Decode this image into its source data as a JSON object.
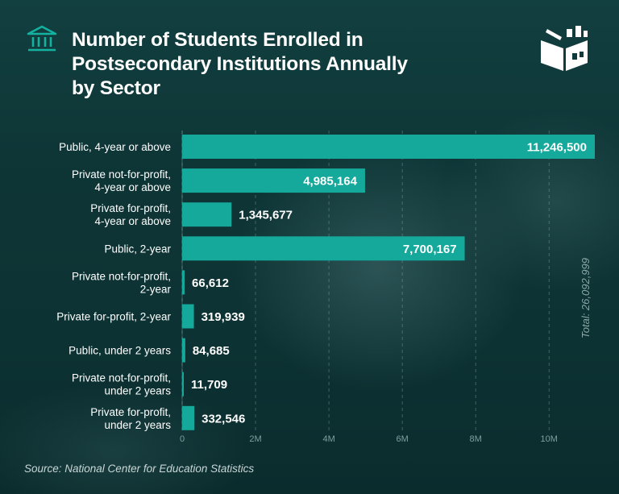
{
  "title_lines": [
    "Number of Students Enrolled in",
    "Postsecondary Institutions Annually",
    "by Sector"
  ],
  "source": "Source: National Center for Education Statistics",
  "colors": {
    "bar": "#14a99a",
    "accent": "#14b1a0",
    "axis_text": "#7f9f9f"
  },
  "icons": [
    "bank-icon",
    "brand-logo-icon"
  ],
  "chart_data": {
    "type": "bar",
    "orientation": "horizontal",
    "title": "Number of Students Enrolled in Postsecondary Institutions Annually by Sector",
    "categories": [
      [
        "Public, 4-year or above"
      ],
      [
        "Private not-for-profit,",
        "4-year or above"
      ],
      [
        "Private for-profit,",
        "4-year or above"
      ],
      [
        "Public, 2-year"
      ],
      [
        "Private not-for-profit,",
        "2-year"
      ],
      [
        "Private for-profit, 2-year"
      ],
      [
        "Public, under 2 years"
      ],
      [
        "Private not-for-profit,",
        "under 2 years"
      ],
      [
        "Private for-profit,",
        "under 2 years"
      ]
    ],
    "values": [
      11246500,
      4985164,
      1345677,
      7700167,
      66612,
      319939,
      84685,
      11709,
      332546
    ],
    "value_labels": [
      "11,246,500",
      "4,985,164",
      "1,345,677",
      "7,700,167",
      "66,612",
      "319,939",
      "84,685",
      "11,709",
      "332,546"
    ],
    "x_ticks": [
      {
        "value": 0,
        "label": "0"
      },
      {
        "value": 2000000,
        "label": "2M"
      },
      {
        "value": 4000000,
        "label": "4M"
      },
      {
        "value": 6000000,
        "label": "6M"
      },
      {
        "value": 8000000,
        "label": "8M"
      },
      {
        "value": 10000000,
        "label": "10M"
      }
    ],
    "xlim": [
      0,
      11246500
    ],
    "grid": true,
    "annotation": "Total: 26,092,999"
  }
}
